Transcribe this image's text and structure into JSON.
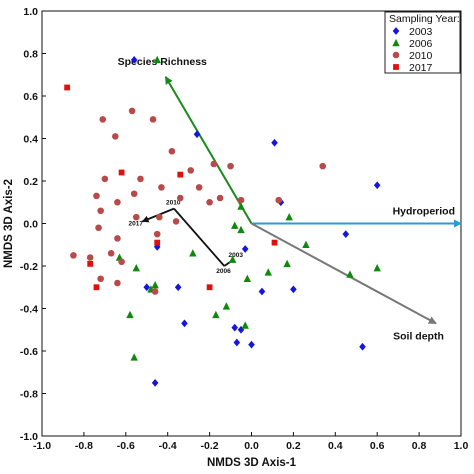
{
  "chart_data": {
    "type": "scatter",
    "xlabel": "NMDS 3D Axis-1",
    "ylabel": "NMDS 3D Axis-2",
    "xlim": [
      -1.0,
      1.0
    ],
    "ylim": [
      -1.0,
      1.0
    ],
    "x_ticks": [
      "-1.0",
      "-0.8",
      "-0.6",
      "-0.4",
      "-0.2",
      "0.0",
      "0.2",
      "0.4",
      "0.6",
      "0.8",
      "1.0"
    ],
    "y_ticks": [
      "1.0",
      "0.8",
      "0.6",
      "0.4",
      "0.2",
      "0.0",
      "-0.2",
      "-0.4",
      "-0.6",
      "-0.8",
      "-1.0"
    ],
    "grid": false,
    "legend": {
      "title": "Sampling Year:",
      "position": "top-right"
    },
    "series": [
      {
        "name": "2003",
        "marker": "diamond",
        "color": "#1515e0",
        "points": [
          [
            -0.56,
            0.77
          ],
          [
            -0.26,
            0.42
          ],
          [
            0.11,
            0.38
          ],
          [
            0.6,
            0.18
          ],
          [
            -0.45,
            -0.11
          ],
          [
            -0.03,
            -0.12
          ],
          [
            0.45,
            -0.05
          ],
          [
            -0.5,
            -0.3
          ],
          [
            -0.35,
            -0.3
          ],
          [
            0.2,
            -0.31
          ],
          [
            0.05,
            -0.32
          ],
          [
            -0.32,
            -0.47
          ],
          [
            -0.08,
            -0.49
          ],
          [
            -0.07,
            -0.56
          ],
          [
            0.0,
            -0.57
          ],
          [
            0.53,
            -0.58
          ],
          [
            -0.46,
            -0.75
          ],
          [
            -0.05,
            -0.5
          ],
          [
            0.14,
            0.1
          ]
        ]
      },
      {
        "name": "2006",
        "marker": "triangle",
        "color": "#0d8a0d",
        "points": [
          [
            -0.45,
            0.77
          ],
          [
            -0.05,
            0.08
          ],
          [
            0.18,
            0.03
          ],
          [
            -0.08,
            -0.01
          ],
          [
            -0.05,
            -0.03
          ],
          [
            -0.28,
            -0.14
          ],
          [
            -0.63,
            -0.16
          ],
          [
            -0.55,
            -0.21
          ],
          [
            -0.09,
            -0.17
          ],
          [
            0.17,
            -0.19
          ],
          [
            0.26,
            -0.1
          ],
          [
            0.6,
            -0.21
          ],
          [
            0.08,
            -0.23
          ],
          [
            -0.02,
            -0.26
          ],
          [
            0.47,
            -0.24
          ],
          [
            -0.48,
            -0.31
          ],
          [
            -0.46,
            -0.29
          ],
          [
            -0.58,
            -0.43
          ],
          [
            -0.17,
            -0.43
          ],
          [
            -0.12,
            -0.39
          ],
          [
            -0.03,
            -0.48
          ],
          [
            -0.56,
            -0.63
          ]
        ]
      },
      {
        "name": "2010",
        "marker": "circle",
        "color": "#b84a4a",
        "points": [
          [
            -0.71,
            0.49
          ],
          [
            -0.57,
            0.53
          ],
          [
            -0.47,
            0.49
          ],
          [
            -0.65,
            0.41
          ],
          [
            -0.38,
            0.34
          ],
          [
            -0.18,
            0.28
          ],
          [
            -0.1,
            0.27
          ],
          [
            -0.29,
            0.25
          ],
          [
            0.34,
            0.27
          ],
          [
            -0.7,
            0.21
          ],
          [
            -0.53,
            0.21
          ],
          [
            -0.43,
            0.17
          ],
          [
            -0.25,
            0.17
          ],
          [
            -0.2,
            0.1
          ],
          [
            -0.56,
            0.14
          ],
          [
            -0.74,
            0.13
          ],
          [
            -0.64,
            0.1
          ],
          [
            -0.34,
            0.12
          ],
          [
            -0.15,
            0.12
          ],
          [
            -0.05,
            0.11
          ],
          [
            0.13,
            0.11
          ],
          [
            -0.72,
            0.06
          ],
          [
            -0.55,
            0.03
          ],
          [
            -0.44,
            0.03
          ],
          [
            -0.36,
            0.01
          ],
          [
            -0.73,
            -0.02
          ],
          [
            -0.64,
            -0.07
          ],
          [
            -0.45,
            -0.05
          ],
          [
            -0.85,
            -0.15
          ],
          [
            -0.67,
            -0.14
          ],
          [
            -0.77,
            -0.16
          ],
          [
            -0.64,
            -0.28
          ],
          [
            -0.46,
            -0.32
          ],
          [
            -0.72,
            -0.26
          ],
          [
            -0.62,
            -0.18
          ]
        ]
      },
      {
        "name": "2017",
        "marker": "square",
        "color": "#e01010",
        "points": [
          [
            -0.88,
            0.64
          ],
          [
            -0.62,
            0.24
          ],
          [
            -0.34,
            0.23
          ],
          [
            -0.77,
            -0.19
          ],
          [
            -0.74,
            -0.3
          ],
          [
            -0.2,
            -0.3
          ],
          [
            0.11,
            -0.09
          ],
          [
            -0.45,
            -0.09
          ]
        ]
      }
    ],
    "vectors": [
      {
        "name": "Species Richness",
        "from": [
          0.0,
          0.0
        ],
        "to": [
          -0.41,
          0.69
        ],
        "color": "#1a8a1a"
      },
      {
        "name": "Hydroperiod",
        "from": [
          0.0,
          0.0
        ],
        "to": [
          1.0,
          0.0
        ],
        "color": "#2a9ad8"
      },
      {
        "name": "Soil depth",
        "from": [
          0.0,
          0.0
        ],
        "to": [
          0.88,
          -0.47
        ],
        "color": "#777777"
      }
    ],
    "trajectory": {
      "color": "#111111",
      "points": [
        {
          "label": "2003",
          "x": -0.1,
          "y": -0.18
        },
        {
          "label": "2006",
          "x": -0.13,
          "y": -0.2
        },
        {
          "label": "2010",
          "x": -0.37,
          "y": 0.07
        },
        {
          "label": "2017",
          "x": -0.52,
          "y": 0.01
        }
      ]
    }
  }
}
